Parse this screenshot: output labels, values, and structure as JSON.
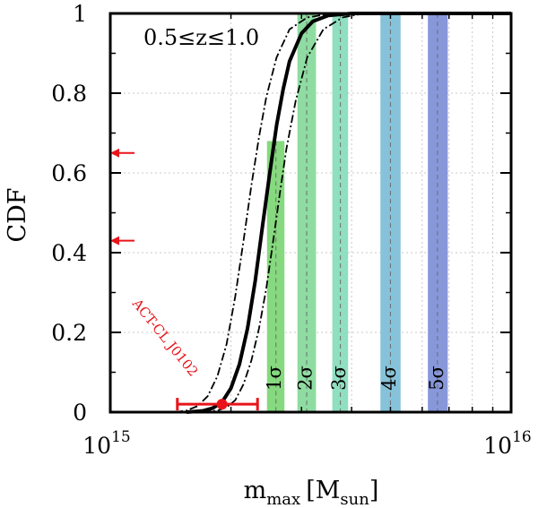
{
  "chart_data": {
    "type": "line",
    "title": "",
    "annotation_text": "0.5≤z≤1.0",
    "xlabel_main": "m",
    "xlabel_sub": "max",
    "xlabel_unit": "[M",
    "xlabel_unit_sub": "sun",
    "xlabel_close": "]",
    "ylabel": "CDF",
    "x_scale": "log",
    "xlim": [
      1000000000000000.0,
      1e+16
    ],
    "ylim": [
      0,
      1
    ],
    "x_tick_labels": [
      {
        "value": 1000000000000000.0,
        "base": "10",
        "exp": "15"
      },
      {
        "value": 1e+16,
        "base": "10",
        "exp": "16"
      }
    ],
    "y_ticks": [
      0,
      0.2,
      0.4,
      0.6,
      0.8,
      1
    ],
    "y_tick_labels": [
      "0",
      "0.2",
      "0.4",
      "0.6",
      "0.8",
      "1"
    ],
    "series": [
      {
        "name": "CDF median",
        "style": "solid",
        "color": "#000000",
        "x": [
          1550000000000000.0,
          1700000000000000.0,
          1800000000000000.0,
          1900000000000000.0,
          2000000000000000.0,
          2100000000000000.0,
          2200000000000000.0,
          2300000000000000.0,
          2400000000000000.0,
          2500000000000000.0,
          2600000000000000.0,
          2700000000000000.0,
          2800000000000000.0,
          3000000000000000.0,
          3200000000000000.0,
          3500000000000000.0,
          4000000000000000.0,
          1e+16
        ],
        "y": [
          0.0,
          0.003,
          0.01,
          0.025,
          0.06,
          0.12,
          0.21,
          0.33,
          0.47,
          0.6,
          0.72,
          0.81,
          0.88,
          0.95,
          0.98,
          0.995,
          1.0,
          1.0
        ]
      },
      {
        "name": "CDF upper bound",
        "style": "dash-dot",
        "color": "#000000",
        "x": [
          1450000000000000.0,
          1550000000000000.0,
          1650000000000000.0,
          1750000000000000.0,
          1850000000000000.0,
          1950000000000000.0,
          2050000000000000.0,
          2150000000000000.0,
          2250000000000000.0,
          2350000000000000.0,
          2450000000000000.0,
          2600000000000000.0,
          2800000000000000.0,
          3100000000000000.0,
          3600000000000000.0,
          1e+16
        ],
        "y": [
          0.0,
          0.004,
          0.015,
          0.04,
          0.09,
          0.17,
          0.29,
          0.43,
          0.57,
          0.69,
          0.79,
          0.89,
          0.96,
          0.99,
          1.0,
          1.0
        ]
      },
      {
        "name": "CDF lower bound",
        "style": "dash-dot",
        "color": "#000000",
        "x": [
          1700000000000000.0,
          1850000000000000.0,
          1950000000000000.0,
          2050000000000000.0,
          2150000000000000.0,
          2250000000000000.0,
          2350000000000000.0,
          2450000000000000.0,
          2550000000000000.0,
          2650000000000000.0,
          2750000000000000.0,
          2900000000000000.0,
          3100000000000000.0,
          3400000000000000.0,
          3800000000000000.0,
          4300000000000000.0,
          1e+16
        ],
        "y": [
          0.0,
          0.004,
          0.012,
          0.03,
          0.07,
          0.13,
          0.21,
          0.31,
          0.43,
          0.55,
          0.66,
          0.78,
          0.89,
          0.96,
          0.99,
          1.0,
          1.0
        ]
      }
    ],
    "sigma_bands": [
      {
        "label": "1σ",
        "x_min": 2460000000000000.0,
        "x_max": 2720000000000000.0,
        "center": 2590000000000000.0,
        "top": 0.68,
        "color": "#86d97e"
      },
      {
        "label": "2σ",
        "x_min": 2930000000000000.0,
        "x_max": 3260000000000000.0,
        "center": 3090000000000000.0,
        "top": 1.0,
        "color": "#8fdca2"
      },
      {
        "label": "3σ",
        "x_min": 3580000000000000.0,
        "x_max": 3920000000000000.0,
        "center": 3750000000000000.0,
        "top": 1.0,
        "color": "#8fdfc1"
      },
      {
        "label": "4σ",
        "x_min": 4720000000000000.0,
        "x_max": 5300000000000000.0,
        "center": 5000000000000000.0,
        "top": 1.0,
        "color": "#86c2d9"
      },
      {
        "label": "5σ",
        "x_min": 6200000000000000.0,
        "x_max": 6950000000000000.0,
        "center": 6550000000000000.0,
        "top": 1.0,
        "color": "#8797d9"
      }
    ],
    "observed_cluster": {
      "label": "ACT-CL J0102",
      "x": 1900000000000000.0,
      "x_err_low": 1470000000000000.0,
      "x_err_high": 2330000000000000.0,
      "y": 0.02,
      "color": "#e8141a"
    },
    "axis_arrows": [
      {
        "y": 0.65,
        "color": "#e8141a"
      },
      {
        "y": 0.43,
        "color": "#e8141a"
      }
    ],
    "grid": true
  }
}
